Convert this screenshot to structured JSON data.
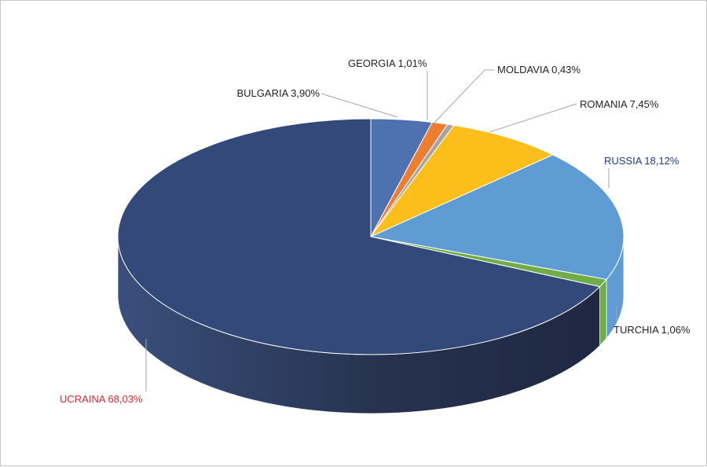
{
  "chart_data": {
    "type": "pie",
    "style": "3d",
    "title": "",
    "slices": [
      {
        "name": "BULGARIA",
        "value": 3.9,
        "label": "BULGARIA 3,90%",
        "color": "#4e72b0"
      },
      {
        "name": "GEORGIA",
        "value": 1.01,
        "label": "GEORGIA 1,01%",
        "color": "#ec7d31"
      },
      {
        "name": "MOLDAVIA",
        "value": 0.43,
        "label": "MOLDAVIA 0,43%",
        "color": "#a5a5a5"
      },
      {
        "name": "ROMANIA",
        "value": 7.45,
        "label": "ROMANIA 7,45%",
        "color": "#fbbe1a"
      },
      {
        "name": "RUSSIA",
        "value": 18.12,
        "label": "RUSSIA 18,12%",
        "color": "#5e9cd3",
        "label_color": "#1f3a8a"
      },
      {
        "name": "TURCHIA",
        "value": 1.06,
        "label": "TURCHIA 1,06%",
        "color": "#70ad47"
      },
      {
        "name": "UCRAINA",
        "value": 68.03,
        "label": "UCRAINA 68,03%",
        "color": "#32497a",
        "label_color": "#e0252a"
      }
    ]
  }
}
